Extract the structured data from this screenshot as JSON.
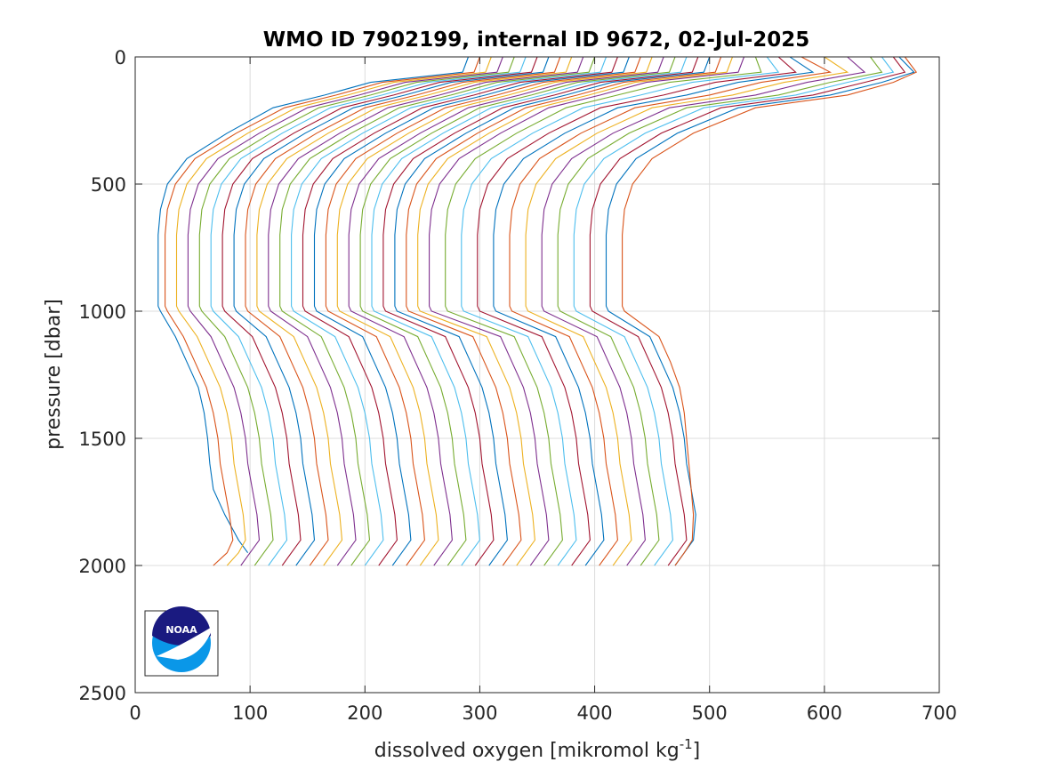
{
  "chart_data": {
    "type": "line",
    "title": "WMO ID 7902199, internal ID 9672, 02-Jul-2025",
    "xlabel": "dissolved oxygen [mikromol kg",
    "xlabel_superscript": "-1",
    "xlabel_suffix": "]",
    "ylabel": "pressure [dbar]",
    "xlim": [
      0,
      700
    ],
    "ylim": [
      0,
      2500
    ],
    "y_reversed": true,
    "grid": true,
    "xticks": [
      "0",
      "100",
      "200",
      "300",
      "400",
      "500",
      "600",
      "700"
    ],
    "yticks": [
      "0",
      "500",
      "1000",
      "1500",
      "2000",
      "2500"
    ],
    "colors": [
      "#0072BD",
      "#D95319",
      "#EDB120",
      "#7E2F8E",
      "#77AC30",
      "#4DBEEE",
      "#A2142F"
    ],
    "pressure_levels": [
      0,
      60,
      100,
      150,
      200,
      300,
      400,
      500,
      600,
      700,
      800,
      980,
      1000,
      1100,
      1200,
      1300,
      1400,
      1500,
      1600,
      1700,
      1800,
      1900,
      1950,
      2000
    ],
    "profiles": [
      {
        "oxygen": [
          290,
          285,
          205,
          165,
          120,
          80,
          45,
          28,
          22,
          20,
          20,
          20,
          22,
          35,
          45,
          55,
          60,
          63,
          65,
          68,
          78,
          90,
          98,
          null
        ]
      },
      {
        "oxygen": [
          300,
          295,
          215,
          175,
          130,
          88,
          52,
          35,
          28,
          26,
          26,
          26,
          28,
          42,
          52,
          62,
          68,
          72,
          74,
          78,
          82,
          85,
          80,
          68
        ]
      },
      {
        "oxygen": [
          310,
          305,
          225,
          185,
          140,
          98,
          62,
          45,
          38,
          36,
          36,
          36,
          38,
          54,
          64,
          74,
          80,
          84,
          86,
          90,
          94,
          96,
          90,
          80
        ]
      },
      {
        "oxygen": [
          320,
          315,
          235,
          195,
          150,
          108,
          72,
          55,
          48,
          46,
          46,
          46,
          48,
          66,
          76,
          86,
          92,
          96,
          98,
          102,
          106,
          108,
          100,
          92
        ]
      },
      {
        "oxygen": [
          330,
          325,
          245,
          205,
          160,
          118,
          82,
          65,
          58,
          56,
          56,
          56,
          58,
          78,
          88,
          98,
          104,
          108,
          110,
          114,
          118,
          120,
          112,
          104
        ]
      },
      {
        "oxygen": [
          340,
          335,
          255,
          215,
          170,
          128,
          92,
          75,
          68,
          66,
          66,
          66,
          68,
          90,
          100,
          110,
          116,
          120,
          122,
          126,
          130,
          132,
          124,
          116
        ]
      },
      {
        "oxygen": [
          350,
          345,
          265,
          225,
          180,
          138,
          102,
          85,
          78,
          76,
          76,
          76,
          78,
          102,
          112,
          122,
          128,
          132,
          134,
          138,
          142,
          144,
          136,
          128
        ]
      },
      {
        "oxygen": [
          360,
          355,
          275,
          235,
          190,
          148,
          112,
          95,
          88,
          86,
          86,
          86,
          88,
          114,
          124,
          134,
          140,
          144,
          146,
          150,
          154,
          156,
          148,
          140
        ]
      },
      {
        "oxygen": [
          370,
          365,
          285,
          245,
          200,
          158,
          122,
          105,
          98,
          96,
          96,
          96,
          98,
          126,
          136,
          146,
          152,
          156,
          158,
          162,
          166,
          168,
          160,
          152
        ]
      },
      {
        "oxygen": [
          380,
          375,
          295,
          255,
          210,
          168,
          132,
          115,
          108,
          106,
          106,
          106,
          108,
          138,
          148,
          158,
          164,
          168,
          170,
          174,
          178,
          180,
          172,
          164
        ]
      },
      {
        "oxygen": [
          390,
          385,
          305,
          265,
          220,
          178,
          142,
          125,
          118,
          116,
          116,
          116,
          118,
          150,
          160,
          170,
          176,
          180,
          182,
          186,
          190,
          192,
          184,
          176
        ]
      },
      {
        "oxygen": [
          400,
          395,
          315,
          275,
          230,
          188,
          152,
          135,
          128,
          126,
          126,
          126,
          128,
          162,
          172,
          182,
          188,
          192,
          194,
          198,
          202,
          204,
          196,
          188
        ]
      },
      {
        "oxygen": [
          410,
          405,
          325,
          285,
          240,
          198,
          162,
          145,
          138,
          136,
          136,
          136,
          138,
          174,
          184,
          194,
          200,
          204,
          206,
          210,
          214,
          216,
          208,
          200
        ]
      },
      {
        "oxygen": [
          420,
          415,
          335,
          295,
          250,
          208,
          172,
          155,
          148,
          146,
          146,
          146,
          148,
          186,
          196,
          206,
          212,
          216,
          218,
          222,
          226,
          228,
          220,
          212
        ]
      },
      {
        "oxygen": [
          430,
          425,
          345,
          305,
          260,
          218,
          182,
          165,
          158,
          156,
          156,
          156,
          158,
          198,
          208,
          218,
          224,
          228,
          230,
          234,
          238,
          240,
          232,
          224
        ]
      },
      {
        "oxygen": [
          440,
          435,
          355,
          315,
          270,
          228,
          192,
          175,
          168,
          166,
          166,
          166,
          168,
          210,
          220,
          230,
          236,
          240,
          242,
          246,
          250,
          252,
          244,
          236
        ]
      },
      {
        "oxygen": [
          450,
          445,
          365,
          325,
          280,
          238,
          202,
          185,
          178,
          176,
          176,
          176,
          178,
          222,
          232,
          242,
          248,
          252,
          254,
          258,
          262,
          264,
          256,
          248
        ]
      },
      {
        "oxygen": [
          460,
          455,
          375,
          335,
          290,
          248,
          212,
          195,
          188,
          186,
          186,
          186,
          188,
          234,
          244,
          254,
          260,
          264,
          266,
          270,
          274,
          276,
          268,
          260
        ]
      },
      {
        "oxygen": [
          470,
          465,
          385,
          345,
          300,
          258,
          222,
          205,
          198,
          196,
          196,
          196,
          198,
          246,
          256,
          266,
          272,
          276,
          278,
          282,
          286,
          288,
          280,
          272
        ]
      },
      {
        "oxygen": [
          480,
          475,
          395,
          355,
          310,
          268,
          232,
          215,
          208,
          206,
          206,
          206,
          208,
          258,
          268,
          278,
          284,
          288,
          290,
          294,
          298,
          300,
          292,
          284
        ]
      },
      {
        "oxygen": [
          490,
          485,
          405,
          365,
          320,
          278,
          242,
          225,
          218,
          216,
          216,
          216,
          218,
          270,
          280,
          290,
          296,
          300,
          302,
          306,
          310,
          312,
          304,
          296
        ]
      },
      {
        "oxygen": [
          500,
          495,
          415,
          375,
          330,
          288,
          252,
          235,
          228,
          226,
          226,
          226,
          228,
          282,
          292,
          302,
          308,
          312,
          314,
          318,
          322,
          324,
          316,
          308
        ]
      },
      {
        "oxygen": [
          510,
          505,
          425,
          385,
          340,
          298,
          262,
          245,
          238,
          236,
          236,
          236,
          238,
          294,
          304,
          314,
          320,
          324,
          326,
          330,
          334,
          336,
          328,
          320
        ]
      },
      {
        "oxygen": [
          520,
          515,
          435,
          395,
          350,
          308,
          272,
          255,
          248,
          246,
          246,
          246,
          248,
          306,
          316,
          326,
          332,
          336,
          338,
          342,
          346,
          348,
          340,
          332
        ]
      },
      {
        "oxygen": [
          530,
          525,
          445,
          405,
          360,
          318,
          282,
          265,
          258,
          256,
          256,
          256,
          258,
          318,
          328,
          338,
          344,
          348,
          350,
          354,
          358,
          360,
          352,
          344
        ]
      },
      {
        "oxygen": [
          540,
          545,
          465,
          420,
          375,
          332,
          296,
          279,
          272,
          270,
          270,
          270,
          272,
          330,
          340,
          350,
          356,
          360,
          362,
          366,
          370,
          372,
          364,
          356
        ]
      },
      {
        "oxygen": [
          550,
          560,
          485,
          440,
          390,
          346,
          310,
          293,
          286,
          284,
          284,
          284,
          286,
          342,
          352,
          362,
          368,
          372,
          374,
          378,
          382,
          384,
          376,
          368
        ]
      },
      {
        "oxygen": [
          560,
          575,
          505,
          460,
          405,
          360,
          324,
          307,
          300,
          298,
          298,
          298,
          300,
          354,
          364,
          374,
          380,
          384,
          386,
          390,
          394,
          396,
          388,
          380
        ]
      },
      {
        "oxygen": [
          570,
          590,
          525,
          480,
          420,
          374,
          338,
          321,
          314,
          312,
          312,
          312,
          314,
          366,
          376,
          386,
          392,
          396,
          398,
          402,
          406,
          408,
          400,
          392
        ]
      },
      {
        "oxygen": [
          580,
          605,
          545,
          500,
          435,
          388,
          352,
          335,
          328,
          326,
          326,
          326,
          328,
          378,
          388,
          398,
          404,
          408,
          410,
          414,
          418,
          420,
          412,
          404
        ]
      },
      {
        "oxygen": [
          600,
          620,
          565,
          520,
          450,
          402,
          366,
          349,
          342,
          340,
          340,
          340,
          342,
          390,
          400,
          410,
          416,
          420,
          422,
          426,
          430,
          432,
          424,
          416
        ]
      },
      {
        "oxygen": [
          620,
          635,
          585,
          540,
          465,
          416,
          380,
          363,
          356,
          354,
          354,
          354,
          356,
          402,
          412,
          422,
          428,
          432,
          434,
          438,
          442,
          444,
          436,
          428
        ]
      },
      {
        "oxygen": [
          640,
          650,
          605,
          560,
          480,
          430,
          394,
          377,
          370,
          368,
          368,
          368,
          370,
          414,
          424,
          434,
          440,
          444,
          446,
          450,
          454,
          456,
          448,
          440
        ]
      },
      {
        "oxygen": [
          650,
          660,
          620,
          575,
          495,
          444,
          408,
          391,
          384,
          382,
          382,
          382,
          384,
          426,
          436,
          446,
          452,
          456,
          458,
          462,
          466,
          468,
          460,
          452
        ]
      },
      {
        "oxygen": [
          660,
          670,
          635,
          590,
          510,
          458,
          422,
          405,
          398,
          396,
          396,
          396,
          398,
          438,
          448,
          458,
          464,
          468,
          470,
          474,
          478,
          480,
          472,
          464
        ]
      },
      {
        "oxygen": [
          665,
          678,
          650,
          605,
          525,
          472,
          436,
          419,
          412,
          410,
          410,
          410,
          412,
          448,
          458,
          468,
          474,
          478,
          480,
          484,
          488,
          486,
          478,
          470
        ]
      },
      {
        "oxygen": [
          670,
          680,
          660,
          620,
          540,
          486,
          450,
          433,
          426,
          424,
          424,
          424,
          426,
          456,
          466,
          474,
          478,
          480,
          482,
          484,
          486,
          485,
          478,
          470
        ]
      }
    ]
  },
  "logo": {
    "text": "NOAA"
  }
}
